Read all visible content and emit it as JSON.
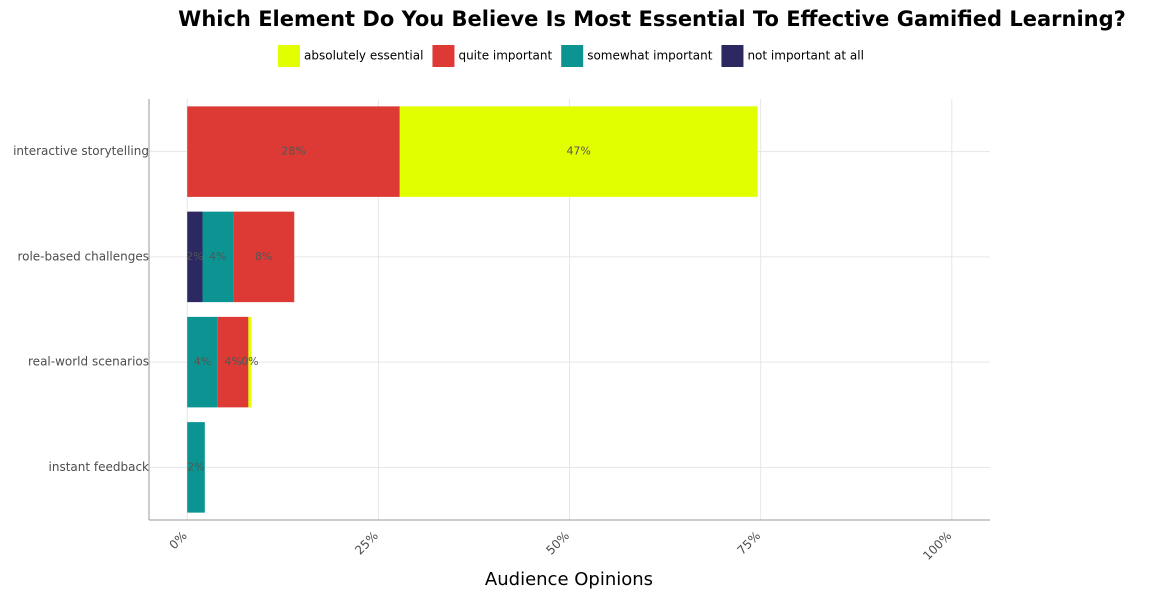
{
  "chart_data": {
    "type": "stacked-barh",
    "title": "Which Element Do You Believe Is Most Essential To Effective Gamified Learning?",
    "xlabel": "Audience Opinions",
    "categories": [
      "interactive storytelling",
      "role-based challenges",
      "real-world scenarios",
      "instant feedback"
    ],
    "series": [
      {
        "name": "not important at all",
        "color": "#2b2862",
        "values": [
          null,
          2,
          null,
          null
        ],
        "value_labels": [
          null,
          "2%",
          null,
          null
        ]
      },
      {
        "name": "somewhat important",
        "color": "#0b9491",
        "values": [
          null,
          4,
          4,
          2.3
        ],
        "value_labels": [
          null,
          "4%",
          "4%",
          "2%"
        ]
      },
      {
        "name": "quite important",
        "color": "#de3a35",
        "values": [
          27.8,
          8,
          4,
          null
        ],
        "value_labels": [
          "28%",
          "8%",
          "4%",
          null
        ]
      },
      {
        "name": "absolutely essential",
        "color": "#e2ff00",
        "values": [
          46.8,
          null,
          0.4,
          null
        ],
        "value_labels": [
          "47%",
          null,
          "0%",
          null
        ]
      }
    ],
    "legend_order": [
      3,
      2,
      1,
      0
    ],
    "xlim": [
      -5,
      105
    ],
    "xticks": [
      {
        "value": 0,
        "label": "0%"
      },
      {
        "value": 25,
        "label": "25%"
      },
      {
        "value": 50,
        "label": "50%"
      },
      {
        "value": 75,
        "label": "75%"
      },
      {
        "value": 100,
        "label": "100%"
      }
    ],
    "grid": true
  }
}
